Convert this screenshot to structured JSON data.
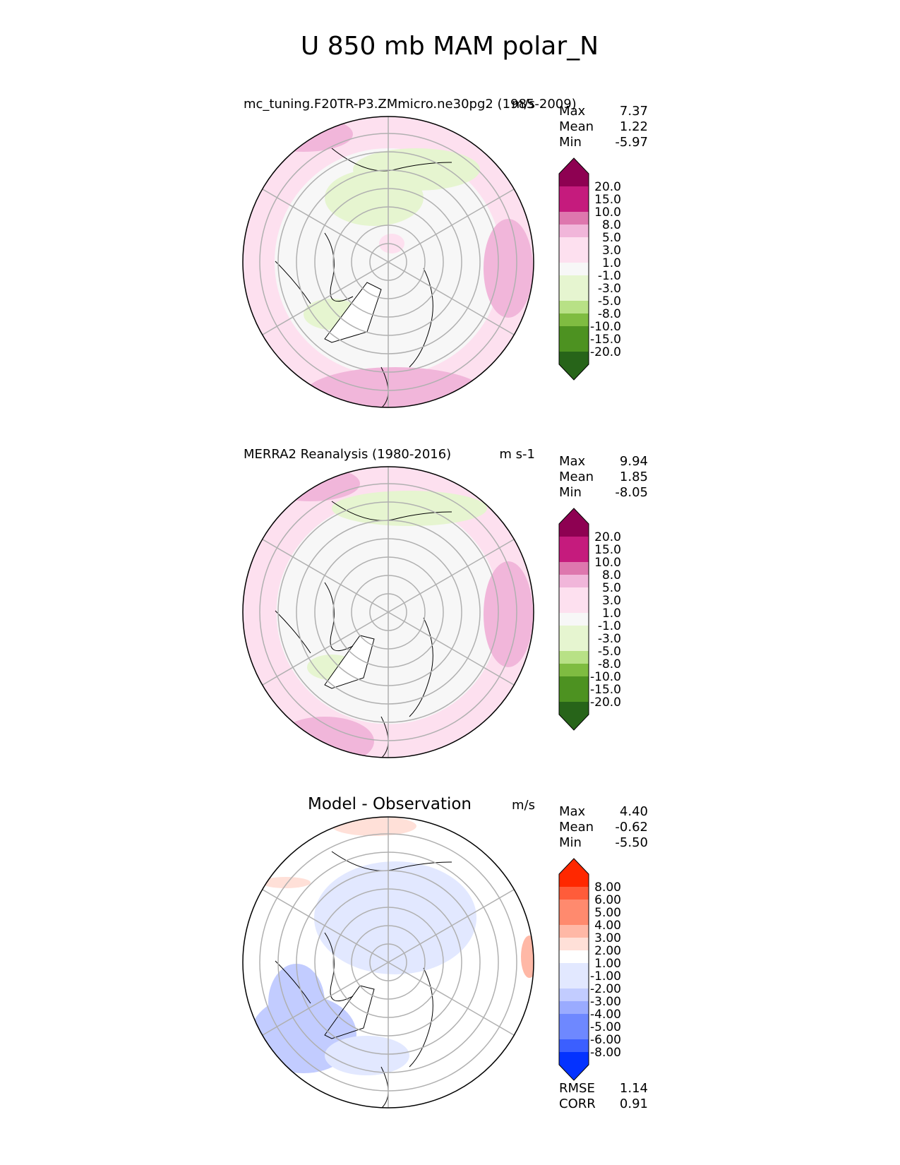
{
  "figure_title": "U 850 mb MAM polar_N",
  "colors": {
    "contour_test": [
      "#276419",
      "#4d9221",
      "#7fbc41",
      "#b8e186",
      "#e6f5d0",
      "#f7f7f7",
      "#fde0ef",
      "#f1b6da",
      "#de77ae",
      "#c51b7d",
      "#8e0152"
    ],
    "contour_diff": [
      "#0432ff",
      "#3b5fff",
      "#6e88ff",
      "#9aabff",
      "#c2ccff",
      "#e2e8ff",
      "#ffffff",
      "#ffe0d8",
      "#ffb8a6",
      "#ff8a6e",
      "#ff5c3a",
      "#ff2800"
    ],
    "grid": "#b0b0b0",
    "coast": "#000000"
  },
  "chart_data": [
    {
      "type": "heatmap",
      "projection": "north-polar-stereographic",
      "title_left": "mc_tuning.F20TR-P3.ZMmicro.ne30pg2 (1985-2009)",
      "title_right": "m/s",
      "stats": [
        {
          "label": "Max",
          "value": "7.37"
        },
        {
          "label": "Mean",
          "value": "1.22"
        },
        {
          "label": "Min",
          "value": "-5.97"
        }
      ],
      "colorbar": {
        "extend": "both",
        "ticks": [
          "20.0",
          "15.0",
          "10.0",
          "8.0",
          "5.0",
          "3.0",
          "1.0",
          "-1.0",
          "-3.0",
          "-5.0",
          "-8.0",
          "-10.0",
          "-15.0",
          "-20.0"
        ],
        "palette": "contour_test"
      }
    },
    {
      "type": "heatmap",
      "projection": "north-polar-stereographic",
      "title_left": "MERRA2 Reanalysis (1980-2016)",
      "title_right": "m s-1",
      "stats": [
        {
          "label": "Max",
          "value": "9.94"
        },
        {
          "label": "Mean",
          "value": "1.85"
        },
        {
          "label": "Min",
          "value": "-8.05"
        }
      ],
      "colorbar": {
        "extend": "both",
        "ticks": [
          "20.0",
          "15.0",
          "10.0",
          "8.0",
          "5.0",
          "3.0",
          "1.0",
          "-1.0",
          "-3.0",
          "-5.0",
          "-8.0",
          "-10.0",
          "-15.0",
          "-20.0"
        ],
        "palette": "contour_test"
      }
    },
    {
      "type": "heatmap",
      "projection": "north-polar-stereographic",
      "title_center": "Model - Observation",
      "title_right": "m/s",
      "stats": [
        {
          "label": "Max",
          "value": "4.40"
        },
        {
          "label": "Mean",
          "value": "-0.62"
        },
        {
          "label": "Min",
          "value": "-5.50"
        }
      ],
      "colorbar": {
        "extend": "both",
        "ticks": [
          "8.00",
          "6.00",
          "5.00",
          "4.00",
          "3.00",
          "2.00",
          "1.00",
          "-1.00",
          "-2.00",
          "-3.00",
          "-4.00",
          "-5.00",
          "-6.00",
          "-8.00"
        ],
        "palette": "contour_diff"
      },
      "metrics": [
        {
          "label": "RMSE",
          "value": "1.14"
        },
        {
          "label": "CORR",
          "value": "0.91"
        }
      ]
    }
  ]
}
